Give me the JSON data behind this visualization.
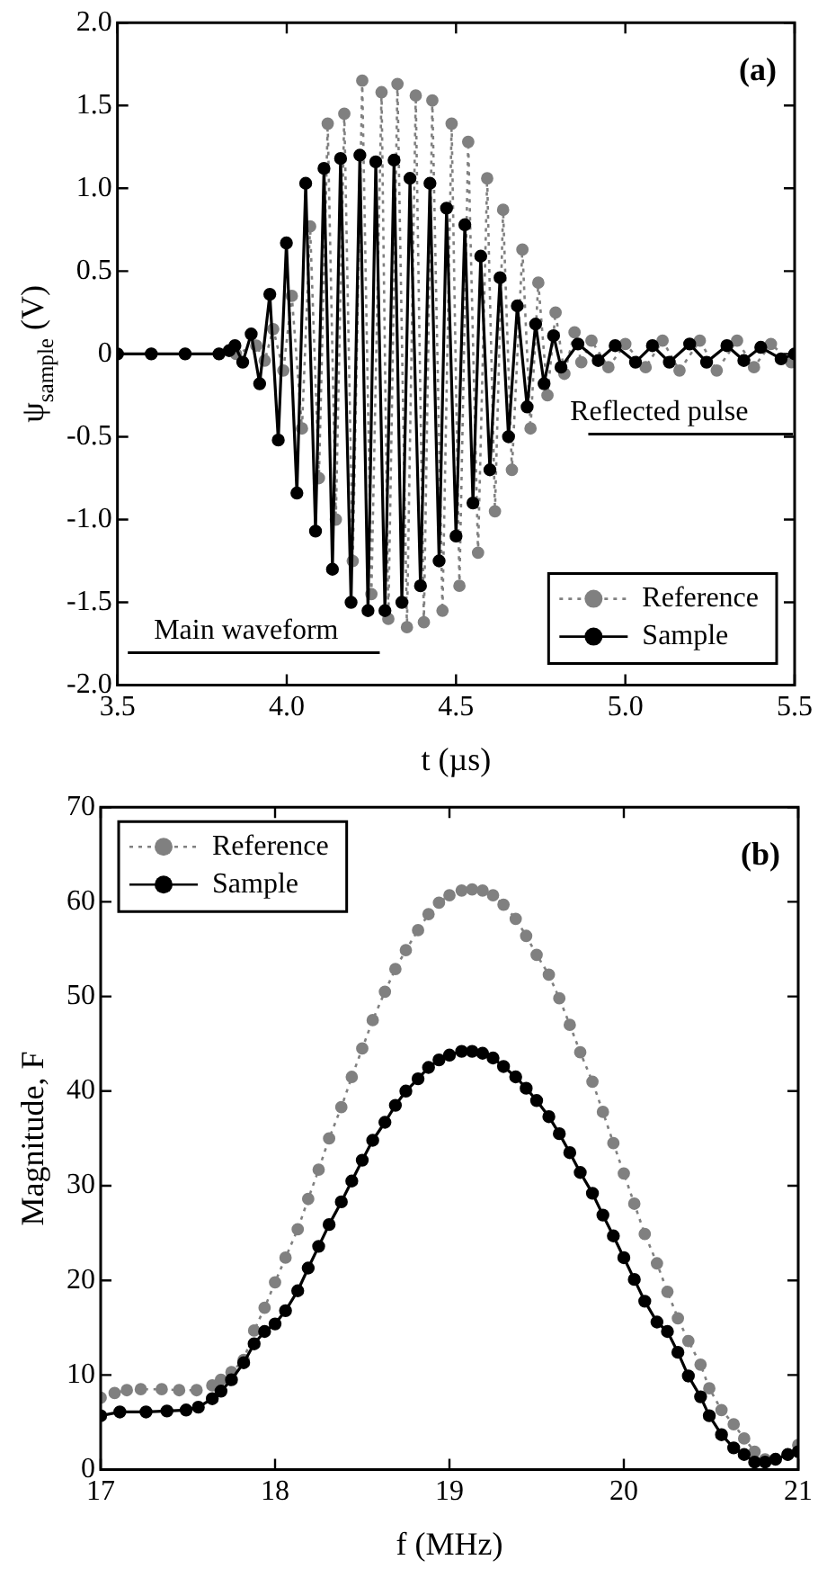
{
  "chart_data": [
    {
      "type": "line",
      "ylabel": "ψ$_{sample}$ (V)",
      "xlabel": "t (µs)",
      "xlim": [
        3.5,
        5.5
      ],
      "ylim": [
        -2.0,
        2.0
      ],
      "xticks": [
        {
          "value": 3.5,
          "label": "3.5"
        },
        {
          "value": 4.0,
          "label": "4.0"
        },
        {
          "value": 4.5,
          "label": "4.5"
        },
        {
          "value": 5.0,
          "label": "5.0"
        },
        {
          "value": 5.5,
          "label": "5.5"
        }
      ],
      "yticks": [
        {
          "value": -2.0,
          "label": "-2.0"
        },
        {
          "value": -1.5,
          "label": "-1.5"
        },
        {
          "value": -1.0,
          "label": "-1.0"
        },
        {
          "value": -0.5,
          "label": "-0.5"
        },
        {
          "value": 0,
          "label": "0"
        },
        {
          "value": 0.5,
          "label": "0.5"
        },
        {
          "value": 1.0,
          "label": "1.0"
        },
        {
          "value": 1.5,
          "label": "1.5"
        },
        {
          "value": 2.0,
          "label": "2.0"
        }
      ],
      "grid": false,
      "legend": "bottom right",
      "annotations": [
        "(a)",
        "Reflected pulse",
        "Main waveform"
      ],
      "series": [
        {
          "name": "Reference",
          "color": "#808080",
          "line_style": "dotted",
          "marker": "circle",
          "x": [
            3.5,
            3.6,
            3.7,
            3.8,
            3.85,
            3.91,
            3.935,
            3.96,
            3.99,
            4.015,
            4.045,
            4.069,
            4.095,
            4.121,
            4.145,
            4.17,
            4.195,
            4.223,
            4.25,
            4.28,
            4.3,
            4.327,
            4.355,
            4.381,
            4.405,
            4.43,
            4.46,
            4.487,
            4.51,
            4.536,
            4.565,
            4.592,
            4.615,
            4.639,
            4.665,
            4.696,
            4.72,
            4.743,
            4.77,
            4.794,
            4.82,
            4.85,
            4.87,
            4.9,
            4.95,
            5.0,
            5.06,
            5.11,
            5.16,
            5.22,
            5.27,
            5.33,
            5.38,
            5.43,
            5.49
          ],
          "values": [
            0,
            0,
            0,
            0,
            0,
            0.05,
            -0.04,
            0.15,
            -0.1,
            0.35,
            -0.45,
            0.77,
            -0.75,
            1.39,
            -1.0,
            1.45,
            -1.25,
            1.65,
            -1.45,
            1.58,
            -1.6,
            1.63,
            -1.65,
            1.56,
            -1.62,
            1.53,
            -1.55,
            1.39,
            -1.4,
            1.28,
            -1.2,
            1.06,
            -0.95,
            0.87,
            -0.7,
            0.63,
            -0.45,
            0.43,
            -0.25,
            0.25,
            -0.12,
            0.13,
            -0.05,
            0.08,
            -0.08,
            0.06,
            -0.08,
            0.08,
            -0.1,
            0.08,
            -0.1,
            0.08,
            -0.08,
            0.06,
            -0.05
          ]
        },
        {
          "name": "Sample",
          "color": "#000000",
          "line_style": "solid",
          "marker": "circle",
          "x": [
            3.5,
            3.6,
            3.7,
            3.8,
            3.83,
            3.847,
            3.87,
            3.895,
            3.92,
            3.95,
            3.975,
            3.999,
            4.03,
            4.056,
            4.085,
            4.11,
            4.135,
            4.159,
            4.19,
            4.216,
            4.24,
            4.263,
            4.29,
            4.317,
            4.34,
            4.364,
            4.395,
            4.423,
            4.45,
            4.472,
            4.5,
            4.526,
            4.55,
            4.573,
            4.6,
            4.63,
            4.655,
            4.681,
            4.71,
            4.735,
            4.76,
            4.788,
            4.81,
            4.86,
            4.92,
            4.97,
            5.03,
            5.08,
            5.13,
            5.19,
            5.24,
            5.3,
            5.35,
            5.4,
            5.46,
            5.5
          ],
          "values": [
            0,
            0,
            0,
            0,
            0.02,
            0.05,
            -0.05,
            0.12,
            -0.18,
            0.36,
            -0.52,
            0.67,
            -0.84,
            1.03,
            -1.07,
            1.12,
            -1.3,
            1.18,
            -1.5,
            1.2,
            -1.55,
            1.16,
            -1.55,
            1.17,
            -1.5,
            1.06,
            -1.4,
            1.03,
            -1.25,
            0.88,
            -1.1,
            0.78,
            -0.9,
            0.59,
            -0.7,
            0.46,
            -0.5,
            0.29,
            -0.32,
            0.18,
            -0.18,
            0.11,
            -0.08,
            0.06,
            -0.04,
            0.05,
            -0.05,
            0.05,
            -0.05,
            0.06,
            -0.05,
            0.05,
            -0.04,
            0.04,
            -0.03,
            0
          ]
        }
      ]
    },
    {
      "type": "line",
      "ylabel": "Magnitude, F",
      "xlabel": "f (MHz)",
      "xlim": [
        17,
        21
      ],
      "ylim": [
        0,
        70
      ],
      "xticks": [
        17,
        18,
        19,
        20,
        21
      ],
      "yticks": [
        0,
        10,
        20,
        30,
        40,
        50,
        60,
        70
      ],
      "grid": false,
      "legend": "top left",
      "annotations": [
        "(b)"
      ],
      "series": [
        {
          "name": "Reference",
          "color": "#808080",
          "line_style": "dotted",
          "marker": "circle",
          "x": [
            17.0,
            17.08,
            17.15,
            17.23,
            17.35,
            17.45,
            17.55,
            17.64,
            17.69,
            17.75,
            17.82,
            17.88,
            17.94,
            18.0,
            18.06,
            18.13,
            18.19,
            18.25,
            18.31,
            18.38,
            18.44,
            18.5,
            18.56,
            18.63,
            18.69,
            18.75,
            18.82,
            18.88,
            18.94,
            19.0,
            19.07,
            19.13,
            19.19,
            19.25,
            19.31,
            19.38,
            19.44,
            19.5,
            19.57,
            19.63,
            19.69,
            19.75,
            19.82,
            19.88,
            19.94,
            20.0,
            20.06,
            20.12,
            20.19,
            20.25,
            20.31,
            20.37,
            20.44,
            20.49,
            20.56,
            20.63,
            20.69,
            20.75,
            20.81,
            20.87,
            20.94,
            21.0
          ],
          "values": [
            7.6,
            8.1,
            8.4,
            8.5,
            8.5,
            8.4,
            8.4,
            8.9,
            9.5,
            10.3,
            11.6,
            14.7,
            17.1,
            19.8,
            22.4,
            25.4,
            28.6,
            31.7,
            35.0,
            38.3,
            41.5,
            44.5,
            47.5,
            50.5,
            52.9,
            54.9,
            57.0,
            58.7,
            59.9,
            60.7,
            61.2,
            61.3,
            61.2,
            60.7,
            59.7,
            58.2,
            56.4,
            54.4,
            52.3,
            49.8,
            47.0,
            44.1,
            41.0,
            37.8,
            34.5,
            31.3,
            28.1,
            24.9,
            21.8,
            18.8,
            16.0,
            13.6,
            11.1,
            8.6,
            6.3,
            4.8,
            3.3,
            1.9,
            1.1,
            1.1,
            1.6,
            2.6
          ]
        },
        {
          "name": "Sample",
          "color": "#000000",
          "line_style": "solid",
          "marker": "circle",
          "x": [
            17.0,
            17.11,
            17.26,
            17.38,
            17.49,
            17.56,
            17.64,
            17.69,
            17.75,
            17.82,
            17.88,
            17.94,
            18.0,
            18.06,
            18.13,
            18.19,
            18.25,
            18.31,
            18.38,
            18.44,
            18.5,
            18.56,
            18.63,
            18.69,
            18.75,
            18.82,
            18.88,
            18.94,
            19.0,
            19.07,
            19.13,
            19.19,
            19.25,
            19.31,
            19.38,
            19.44,
            19.5,
            19.57,
            19.63,
            19.69,
            19.75,
            19.82,
            19.88,
            19.94,
            20.0,
            20.06,
            20.12,
            20.19,
            20.25,
            20.31,
            20.37,
            20.44,
            20.49,
            20.56,
            20.63,
            20.69,
            20.75,
            20.81,
            20.87,
            20.94,
            21.0
          ],
          "values": [
            5.7,
            6.1,
            6.1,
            6.2,
            6.3,
            6.6,
            7.5,
            8.3,
            9.5,
            11.3,
            13.3,
            14.6,
            15.4,
            16.8,
            18.9,
            21.3,
            23.6,
            25.9,
            28.3,
            30.5,
            32.7,
            34.8,
            36.7,
            38.5,
            40.0,
            41.3,
            42.5,
            43.3,
            43.8,
            44.2,
            44.2,
            44.0,
            43.5,
            42.6,
            41.5,
            40.3,
            39.0,
            37.3,
            35.5,
            33.5,
            31.4,
            29.2,
            26.9,
            24.7,
            22.4,
            20.1,
            17.8,
            15.6,
            14.6,
            12.4,
            9.9,
            7.7,
            5.7,
            3.7,
            2.3,
            1.6,
            0.8,
            0.8,
            1.1,
            1.6,
            1.9
          ]
        }
      ]
    }
  ]
}
